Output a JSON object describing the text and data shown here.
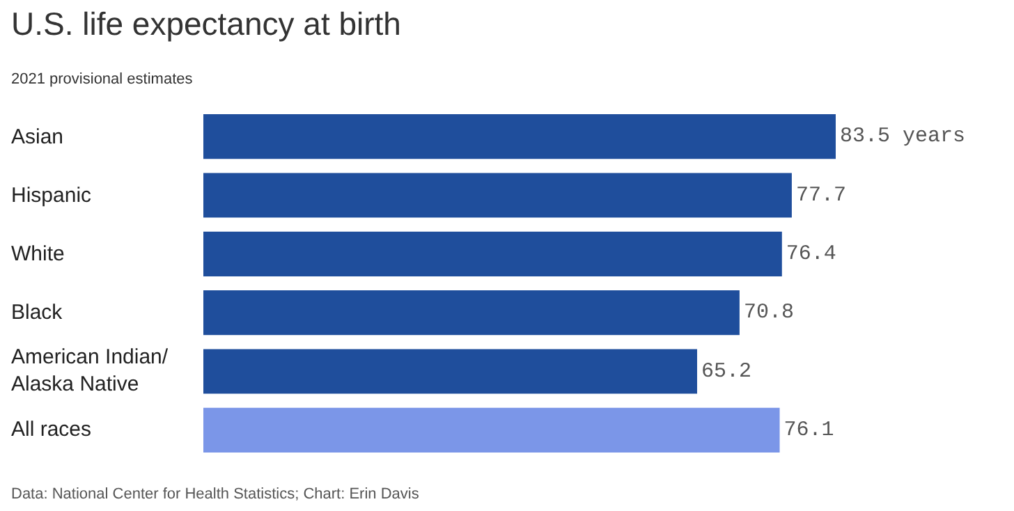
{
  "chart_data": {
    "type": "bar",
    "orientation": "horizontal",
    "title": "U.S. life expectancy at birth",
    "subtitle": "2021 provisional estimates",
    "categories": [
      "Asian",
      "Hispanic",
      "White",
      "Black",
      "American Indian/ Alaska Native",
      "All races"
    ],
    "values": [
      83.5,
      77.7,
      76.4,
      70.8,
      65.2,
      76.1
    ],
    "colors": [
      "#1f4e9c",
      "#1f4e9c",
      "#1f4e9c",
      "#1f4e9c",
      "#1f4e9c",
      "#7b96e8"
    ],
    "value_labels": [
      "83.5 years",
      "77.7",
      "76.4",
      "70.8",
      "65.2",
      "76.1"
    ],
    "annotations": [
      "Data: National Center for Health Statistics; Chart: Erin Davis"
    ]
  }
}
